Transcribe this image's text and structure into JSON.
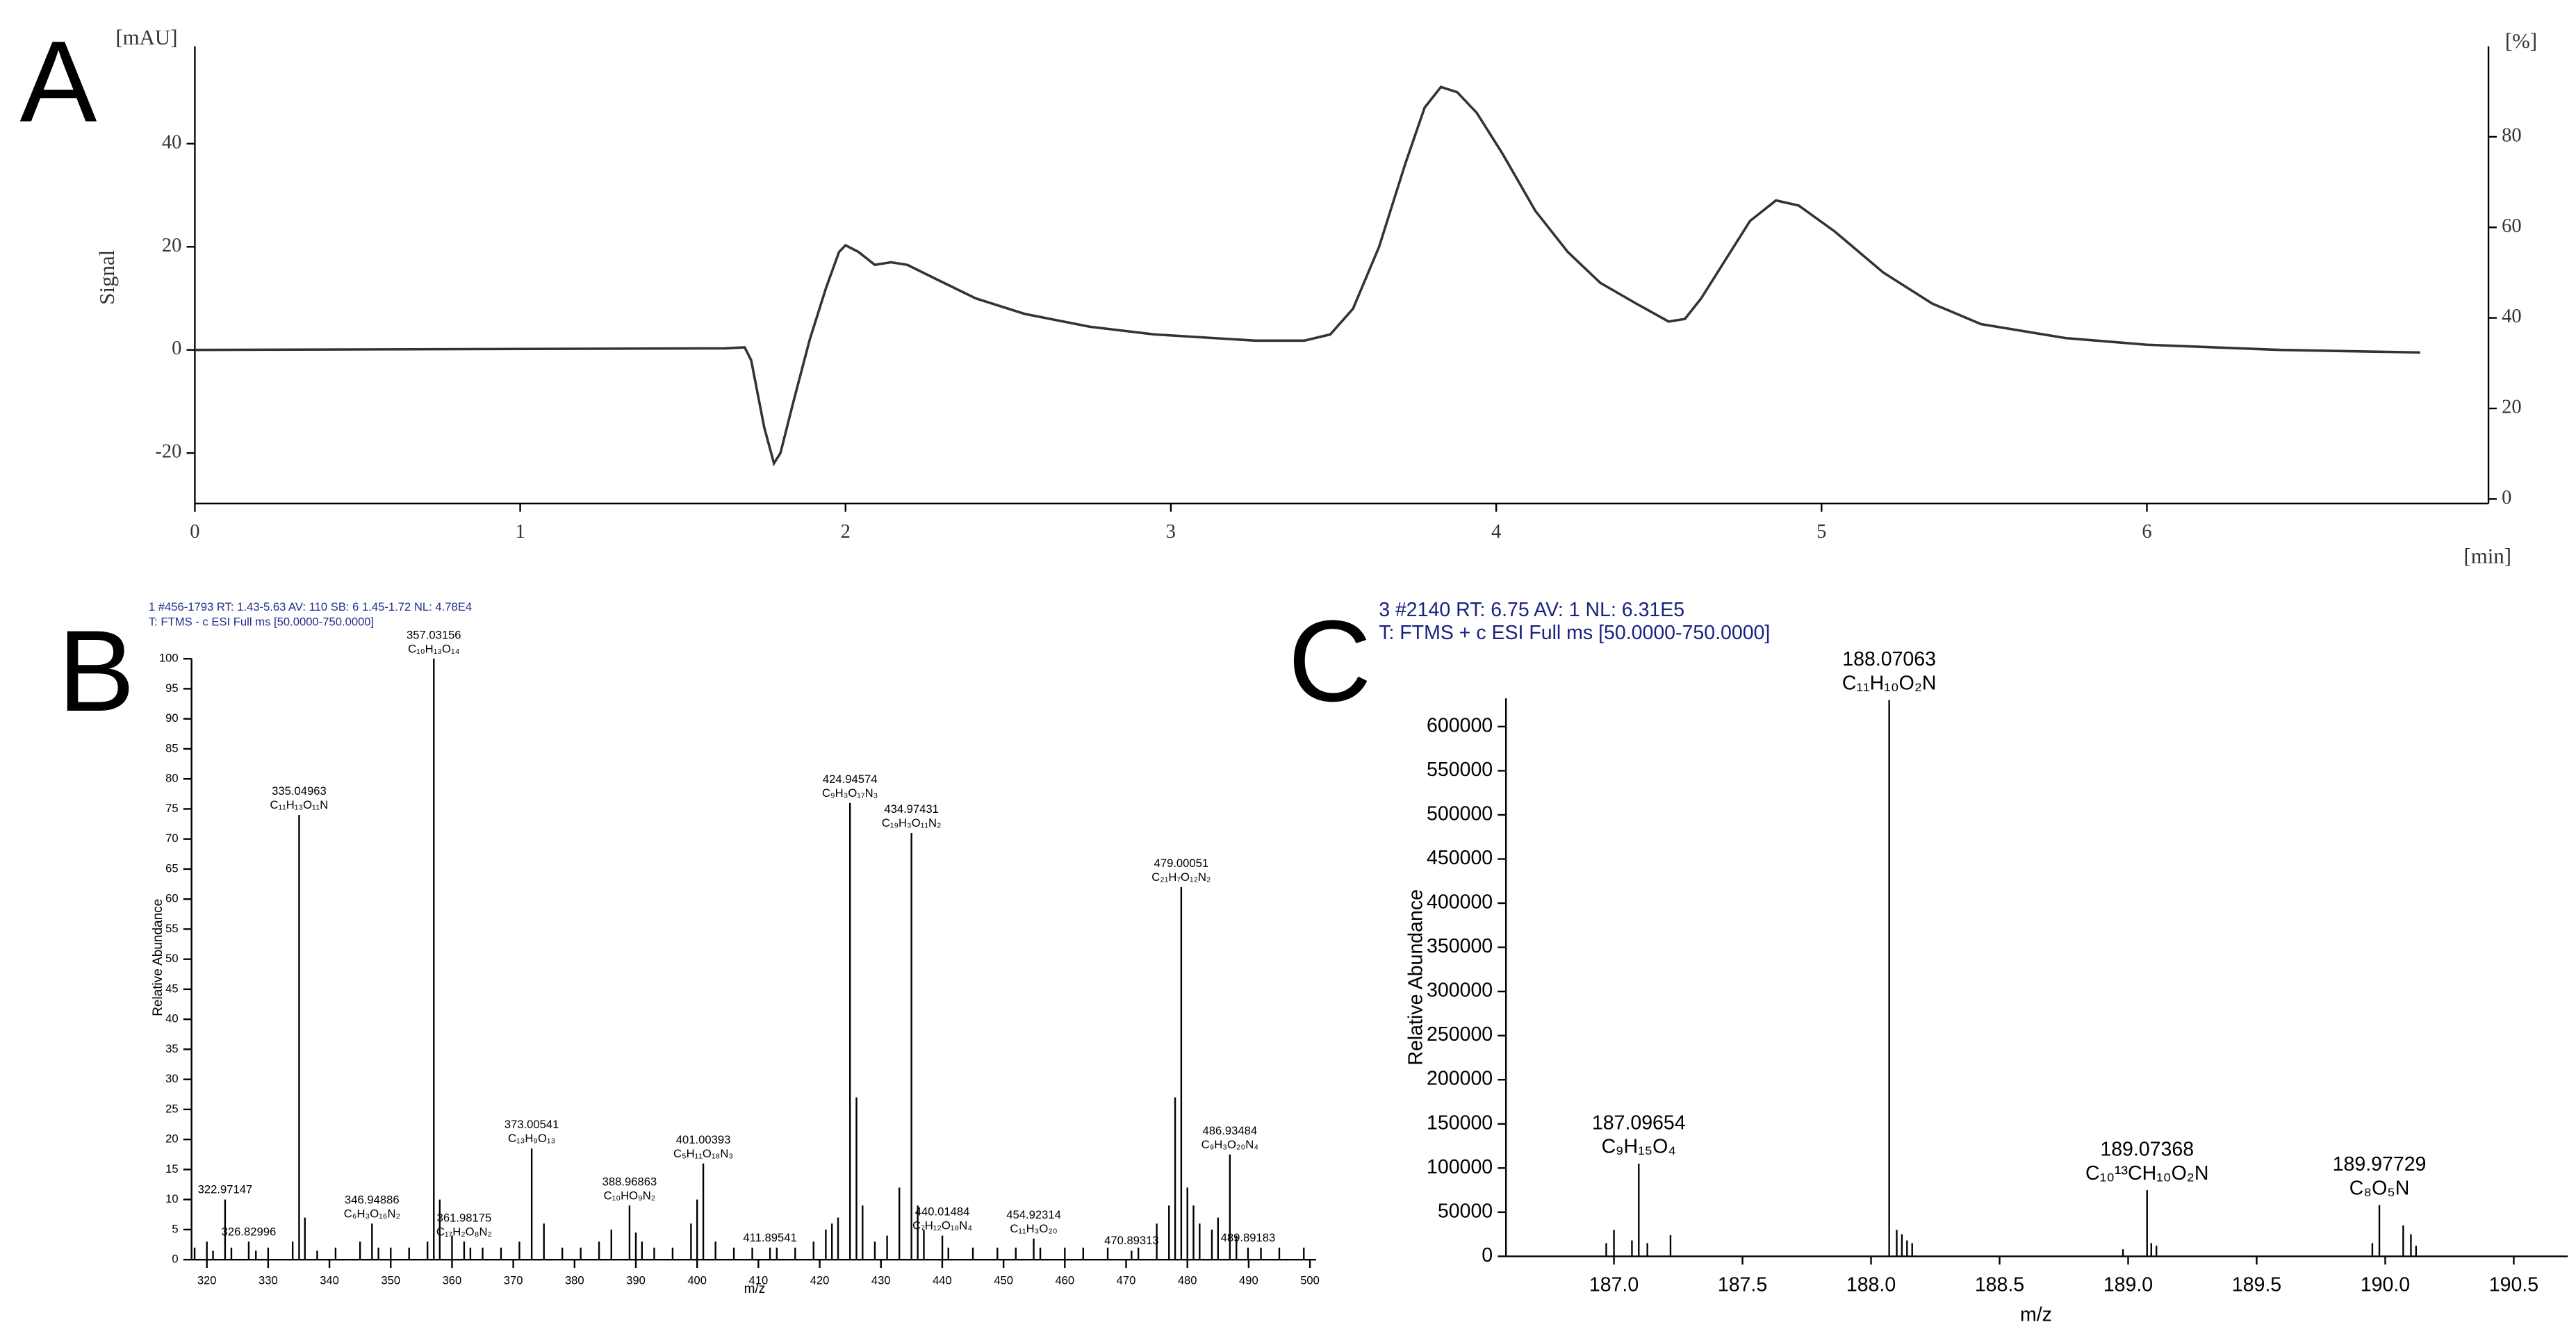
{
  "chart_data": [
    {
      "type": "line",
      "panel": "A",
      "ylabel": "Signal",
      "yunit": "[mAU]",
      "y2unit": "[%]",
      "xunit": "[min]",
      "color": "#333333",
      "x": [
        0,
        1.63,
        1.69,
        1.71,
        1.75,
        1.78,
        1.8,
        1.84,
        1.89,
        1.94,
        1.98,
        2.0,
        2.04,
        2.09,
        2.14,
        2.19,
        2.27,
        2.4,
        2.55,
        2.75,
        2.95,
        3.26,
        3.41,
        3.49,
        3.56,
        3.64,
        3.72,
        3.78,
        3.83,
        3.88,
        3.94,
        4.02,
        4.12,
        4.22,
        4.32,
        4.43,
        4.53,
        4.58,
        4.63,
        4.71,
        4.78,
        4.86,
        4.93,
        5.04,
        5.19,
        5.34,
        5.49,
        5.75,
        6.0,
        6.41,
        6.84
      ],
      "values": [
        0,
        0.3,
        0.5,
        -2,
        -15,
        -22,
        -20,
        -10,
        2,
        12,
        19,
        20.3,
        19,
        16.5,
        17,
        16.5,
        14,
        10,
        7,
        4.5,
        3,
        1.8,
        1.8,
        3,
        8,
        20,
        36,
        47,
        51,
        50,
        46,
        38,
        27,
        19,
        13,
        9,
        5.5,
        6,
        10,
        18,
        25,
        29,
        28,
        23,
        15,
        9,
        5,
        2.3,
        1,
        0,
        -0.5
      ],
      "xlim": [
        0,
        7.05
      ],
      "xticks": [
        0,
        1,
        2,
        3,
        4,
        5,
        6
      ],
      "ylim": [
        -29.8,
        58.9
      ],
      "yticks": [
        -20,
        0,
        20,
        40
      ],
      "y2lim": [
        -1,
        100
      ],
      "y2ticks": [
        0,
        20,
        40,
        60,
        80
      ]
    },
    {
      "type": "stem",
      "panel": "B",
      "header": [
        "1 #456-1793  RT: 1.43-5.63  AV: 110  SB: 6  1.45-1.72  NL: 4.78E4",
        "T: FTMS - c ESI Full ms [50.0000-750.0000]"
      ],
      "ylabel": "Relative Abundance",
      "xlabel": "m/z",
      "color": "#000000",
      "x": [
        318,
        320,
        321,
        322.97147,
        324,
        326.82996,
        328,
        330,
        334,
        335.04963,
        336,
        338,
        341,
        345,
        346.94886,
        348,
        350,
        353,
        356,
        357.03156,
        358,
        360,
        361.98175,
        363,
        365,
        368,
        371,
        373.00541,
        375,
        378,
        381,
        384,
        386,
        388.96863,
        390,
        391,
        393,
        396,
        399,
        400,
        401.00393,
        403,
        406,
        409,
        411.89541,
        413,
        416,
        419,
        421,
        422,
        423,
        424.94574,
        426,
        427,
        429,
        431,
        433,
        434.97431,
        436,
        437,
        440.01484,
        441,
        445,
        449,
        452,
        454.92314,
        456,
        460,
        463,
        467,
        470.89313,
        472,
        475,
        477,
        478,
        479.00051,
        480,
        481,
        482,
        484,
        485,
        486.93484,
        488,
        489.89183,
        492,
        495,
        499
      ],
      "values": [
        2,
        3,
        1.5,
        10,
        2,
        3,
        1.5,
        2,
        3,
        74,
        7,
        1.5,
        2,
        3,
        6,
        2,
        2,
        2,
        3,
        100,
        10,
        4,
        3,
        2,
        2,
        2,
        3,
        18.5,
        6,
        2,
        2,
        3,
        5,
        9,
        4.5,
        3,
        2,
        2,
        6,
        10,
        16,
        3,
        2,
        2,
        2,
        2,
        2,
        3,
        5,
        6,
        7,
        76,
        27,
        9,
        3,
        4,
        12,
        71,
        9,
        5,
        4,
        2,
        2,
        2,
        2,
        3.5,
        2,
        2,
        2,
        2,
        1.5,
        2,
        6,
        9,
        27,
        62,
        12,
        9,
        6,
        5,
        7,
        17.5,
        4,
        2,
        2,
        2,
        2
      ],
      "x_labels": [
        null,
        null,
        null,
        "322.97147",
        null,
        "326.82996",
        null,
        null,
        null,
        "335.04963",
        null,
        null,
        null,
        null,
        "346.94886",
        null,
        null,
        null,
        null,
        "357.03156",
        null,
        null,
        "361.98175",
        null,
        null,
        null,
        null,
        "373.00541",
        null,
        null,
        null,
        null,
        null,
        "388.96863",
        null,
        null,
        null,
        null,
        null,
        null,
        "401.00393",
        null,
        null,
        null,
        "411.89541",
        null,
        null,
        null,
        null,
        null,
        null,
        "424.94574",
        null,
        null,
        null,
        null,
        null,
        "434.97431",
        null,
        null,
        "440.01484",
        null,
        null,
        null,
        null,
        "454.92314",
        null,
        null,
        null,
        null,
        "470.89313",
        null,
        null,
        null,
        null,
        "479.00051",
        null,
        null,
        null,
        null,
        null,
        "486.93484",
        null,
        "489.89183",
        null,
        null,
        null
      ],
      "formulas": [
        null,
        null,
        null,
        null,
        null,
        null,
        null,
        null,
        null,
        "C₁₁H₁₃O₁₁N",
        null,
        null,
        null,
        null,
        "C₆H₃O₁₆N₂",
        null,
        null,
        null,
        null,
        "C₁₀H₁₃O₁₄",
        null,
        null,
        "C₁₇H₂O₈N₂",
        null,
        null,
        null,
        null,
        "C₁₃H₉O₁₃",
        null,
        null,
        null,
        null,
        null,
        "C₁₀HO₉N₂",
        null,
        null,
        null,
        null,
        null,
        null,
        "C₅H₁₁O₁₈N₃",
        null,
        null,
        null,
        null,
        null,
        null,
        null,
        null,
        null,
        null,
        "C₉H₃O₁₇N₃",
        null,
        null,
        null,
        null,
        null,
        "C₁₉H₃O₁₁N₂",
        null,
        null,
        "C₇H₁₂O₁₈N₄",
        null,
        null,
        null,
        null,
        "C₁₁H₃O₂₀",
        null,
        null,
        null,
        null,
        null,
        null,
        null,
        null,
        null,
        "C₂₁H₇O₁₂N₂",
        null,
        null,
        null,
        null,
        null,
        "C₉H₃O₂₀N₄",
        null,
        null,
        null,
        null,
        null
      ],
      "xlim": [
        317.5,
        501
      ],
      "xticks": [
        320,
        330,
        340,
        350,
        360,
        370,
        380,
        390,
        400,
        410,
        420,
        430,
        440,
        450,
        460,
        470,
        480,
        490,
        500
      ],
      "ylim": [
        0,
        100
      ],
      "yticks": [
        0,
        5,
        10,
        15,
        20,
        25,
        30,
        35,
        40,
        45,
        50,
        55,
        60,
        65,
        70,
        75,
        80,
        85,
        90,
        95,
        100
      ]
    },
    {
      "type": "stem",
      "panel": "C",
      "header": [
        "3 #2140  RT: 6.75  AV: 1  NL: 6.31E5",
        "T: FTMS + c ESI Full ms [50.0000-750.0000]"
      ],
      "ylabel": "Relative Abundance",
      "xlabel": "m/z",
      "color": "#000000",
      "x": [
        186.97,
        187,
        187.07,
        187.09654,
        187.13,
        187.22,
        188.07063,
        188.1,
        188.12,
        188.14,
        188.16,
        188.98,
        189.07368,
        189.09,
        189.11,
        189.95,
        189.97729,
        190.07,
        190.1,
        190.12
      ],
      "values": [
        15000,
        30000,
        18000,
        105000,
        15000,
        24000,
        630000,
        30000,
        25000,
        18000,
        15000,
        8000,
        75000,
        15000,
        12000,
        15000,
        58000,
        35000,
        25000,
        12000
      ],
      "x_labels": [
        null,
        null,
        null,
        "187.09654",
        null,
        null,
        "188.07063",
        null,
        null,
        null,
        null,
        null,
        "189.07368",
        null,
        null,
        null,
        "189.97729",
        null,
        null,
        null
      ],
      "formulas": [
        null,
        null,
        null,
        "C₉H₁₅O₄",
        null,
        null,
        "C₁₁H₁₀O₂N",
        null,
        null,
        null,
        null,
        null,
        "C₁₀¹³CH₁₀O₂N",
        null,
        null,
        null,
        "C₈O₅N",
        null,
        null,
        null
      ],
      "xlim": [
        186.58,
        190.71
      ],
      "xticks": [
        {
          "value": 187,
          "label": "187.0"
        },
        187.5,
        {
          "value": 188,
          "label": "188.0"
        },
        188.5,
        {
          "value": 189,
          "label": "189.0"
        },
        189.5,
        {
          "value": 190,
          "label": "190.0"
        },
        190.5
      ],
      "ylim": [
        0,
        632000
      ],
      "yticks": [
        0,
        50000,
        100000,
        150000,
        200000,
        250000,
        300000,
        350000,
        400000,
        450000,
        500000,
        550000,
        600000
      ]
    }
  ]
}
